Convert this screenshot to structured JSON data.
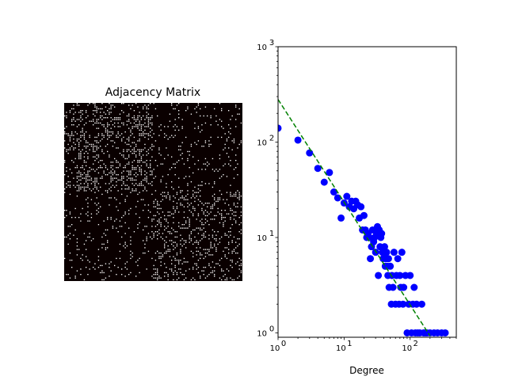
{
  "chart_data": [
    {
      "type": "heatmap",
      "title": "Adjacency Matrix",
      "xlabel": "",
      "ylabel": "",
      "colors": {
        "background": "#0a0000",
        "edge": "#ffffff"
      },
      "structure": "two dense diagonal blocks (nodes 1-~50 and ~51-100) with sparser off-diagonal links"
    },
    {
      "type": "scatter",
      "title": "",
      "xlabel": "Degree",
      "ylabel": "",
      "xscale": "log",
      "yscale": "log",
      "xlim": [
        1,
        500
      ],
      "ylim": [
        0.9,
        1000
      ],
      "xticks": [
        {
          "value": 1,
          "base": "10",
          "exp": "0"
        },
        {
          "value": 10,
          "base": "10",
          "exp": "1"
        },
        {
          "value": 100,
          "base": "10",
          "exp": "2"
        }
      ],
      "yticks": [
        {
          "value": 1,
          "base": "10",
          "exp": "0"
        },
        {
          "value": 10,
          "base": "10",
          "exp": "1"
        },
        {
          "value": 100,
          "base": "10",
          "exp": "2"
        },
        {
          "value": 1000,
          "base": "10",
          "exp": "3"
        }
      ],
      "series": [
        {
          "kind": "points",
          "color": "#0000ff",
          "points": [
            [
              1,
              140
            ],
            [
              2,
              105
            ],
            [
              3,
              77
            ],
            [
              4,
              53
            ],
            [
              5,
              38
            ],
            [
              6,
              48
            ],
            [
              7,
              30
            ],
            [
              8,
              26
            ],
            [
              9,
              16
            ],
            [
              10,
              23
            ],
            [
              11,
              27
            ],
            [
              12,
              21
            ],
            [
              13,
              24
            ],
            [
              14,
              20
            ],
            [
              15,
              24
            ],
            [
              16,
              22
            ],
            [
              17,
              16
            ],
            [
              18,
              21
            ],
            [
              19,
              12
            ],
            [
              20,
              17
            ],
            [
              21,
              12
            ],
            [
              22,
              10
            ],
            [
              23,
              11
            ],
            [
              24,
              10
            ],
            [
              25,
              6
            ],
            [
              26,
              8
            ],
            [
              27,
              12
            ],
            [
              28,
              9
            ],
            [
              29,
              10
            ],
            [
              30,
              7
            ],
            [
              31,
              11
            ],
            [
              32,
              13
            ],
            [
              33,
              4
            ],
            [
              34,
              12
            ],
            [
              35,
              8
            ],
            [
              36,
              10
            ],
            [
              37,
              11
            ],
            [
              38,
              7
            ],
            [
              39,
              6
            ],
            [
              40,
              7
            ],
            [
              41,
              8
            ],
            [
              42,
              5
            ],
            [
              43,
              6
            ],
            [
              44,
              7
            ],
            [
              45,
              5
            ],
            [
              46,
              4
            ],
            [
              47,
              6
            ],
            [
              48,
              3
            ],
            [
              50,
              5
            ],
            [
              52,
              2
            ],
            [
              53,
              4
            ],
            [
              55,
              3
            ],
            [
              57,
              7
            ],
            [
              60,
              2
            ],
            [
              62,
              4
            ],
            [
              65,
              6
            ],
            [
              68,
              2
            ],
            [
              70,
              4
            ],
            [
              72,
              3
            ],
            [
              75,
              7
            ],
            [
              78,
              2
            ],
            [
              80,
              3
            ],
            [
              85,
              4
            ],
            [
              90,
              1
            ],
            [
              95,
              2
            ],
            [
              100,
              4
            ],
            [
              105,
              1
            ],
            [
              110,
              2
            ],
            [
              115,
              3
            ],
            [
              120,
              1
            ],
            [
              125,
              2
            ],
            [
              130,
              1
            ],
            [
              140,
              1
            ],
            [
              150,
              2
            ],
            [
              160,
              1
            ],
            [
              170,
              1
            ],
            [
              180,
              1
            ],
            [
              200,
              1
            ],
            [
              230,
              1
            ],
            [
              260,
              1
            ],
            [
              300,
              1
            ],
            [
              340,
              1
            ]
          ]
        },
        {
          "kind": "fit-line",
          "color": "#008000",
          "style": "dashed",
          "points": [
            [
              1,
              280
            ],
            [
              200,
              0.93
            ]
          ]
        }
      ]
    }
  ]
}
